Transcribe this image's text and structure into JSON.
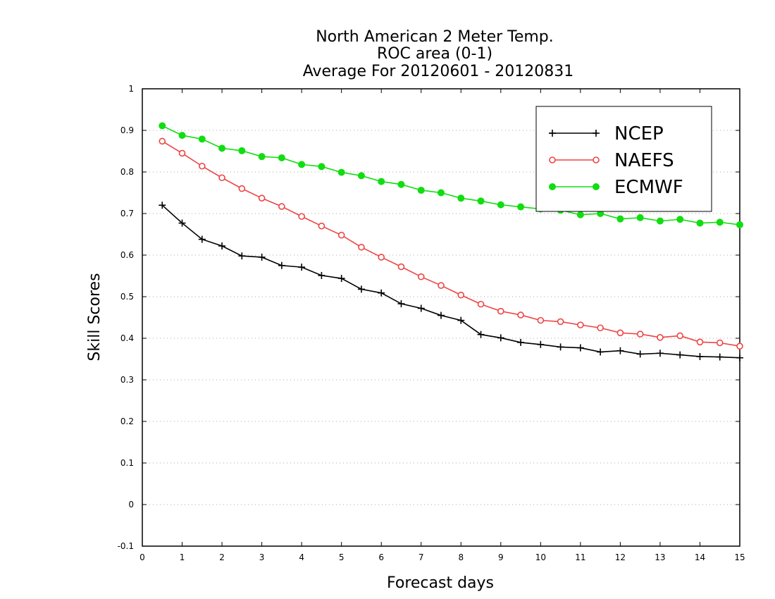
{
  "chart_data": {
    "type": "line",
    "title": [
      "North American 2 Meter Temp.",
      "ROC area (0-1)",
      "Average For 20120601 - 20120831"
    ],
    "xlabel": "Forecast days",
    "ylabel": "Skill Scores",
    "xlim": [
      0,
      15
    ],
    "ylim": [
      -0.1,
      1
    ],
    "xticks": [
      "0",
      "1",
      "2",
      "3",
      "4",
      "5",
      "6",
      "7",
      "8",
      "9",
      "10",
      "11",
      "12",
      "13",
      "14",
      "15"
    ],
    "yticks": [
      "-0.1",
      "0",
      "0.1",
      "0.2",
      "0.3",
      "0.4",
      "0.5",
      "0.6",
      "0.7",
      "0.8",
      "0.9",
      "1"
    ],
    "grid": "horizontal-dotted",
    "legend": "top-right",
    "x": [
      0.5,
      1,
      1.5,
      2,
      2.5,
      3,
      3.5,
      4,
      4.5,
      5,
      5.5,
      6,
      6.5,
      7,
      7.5,
      8,
      8.5,
      9,
      9.5,
      10,
      10.5,
      11,
      11.5,
      12,
      12.5,
      13,
      13.5,
      14,
      14.5,
      15
    ],
    "series": [
      {
        "name": "NCEP",
        "color": "#000000",
        "marker": "plus",
        "values": [
          0.72,
          0.677,
          0.638,
          0.622,
          0.598,
          0.595,
          0.575,
          0.571,
          0.551,
          0.544,
          0.518,
          0.509,
          0.483,
          0.472,
          0.455,
          0.443,
          0.409,
          0.401,
          0.39,
          0.385,
          0.379,
          0.377,
          0.367,
          0.37,
          0.362,
          0.364,
          0.36,
          0.356,
          0.355,
          0.353
        ]
      },
      {
        "name": "NAEFS",
        "color": "#ee4444",
        "marker": "open-circle",
        "values": [
          0.874,
          0.845,
          0.814,
          0.786,
          0.76,
          0.737,
          0.717,
          0.693,
          0.67,
          0.648,
          0.619,
          0.595,
          0.572,
          0.548,
          0.527,
          0.504,
          0.482,
          0.465,
          0.456,
          0.443,
          0.44,
          0.432,
          0.425,
          0.413,
          0.41,
          0.402,
          0.406,
          0.391,
          0.389,
          0.381
        ]
      },
      {
        "name": "ECMWF",
        "color": "#11dd11",
        "marker": "filled-circle",
        "values": [
          0.911,
          0.888,
          0.879,
          0.857,
          0.851,
          0.837,
          0.834,
          0.818,
          0.813,
          0.799,
          0.791,
          0.777,
          0.77,
          0.756,
          0.75,
          0.737,
          0.73,
          0.721,
          0.716,
          0.711,
          0.708,
          0.697,
          0.7,
          0.687,
          0.69,
          0.682,
          0.686,
          0.677,
          0.679,
          0.673
        ]
      }
    ]
  }
}
